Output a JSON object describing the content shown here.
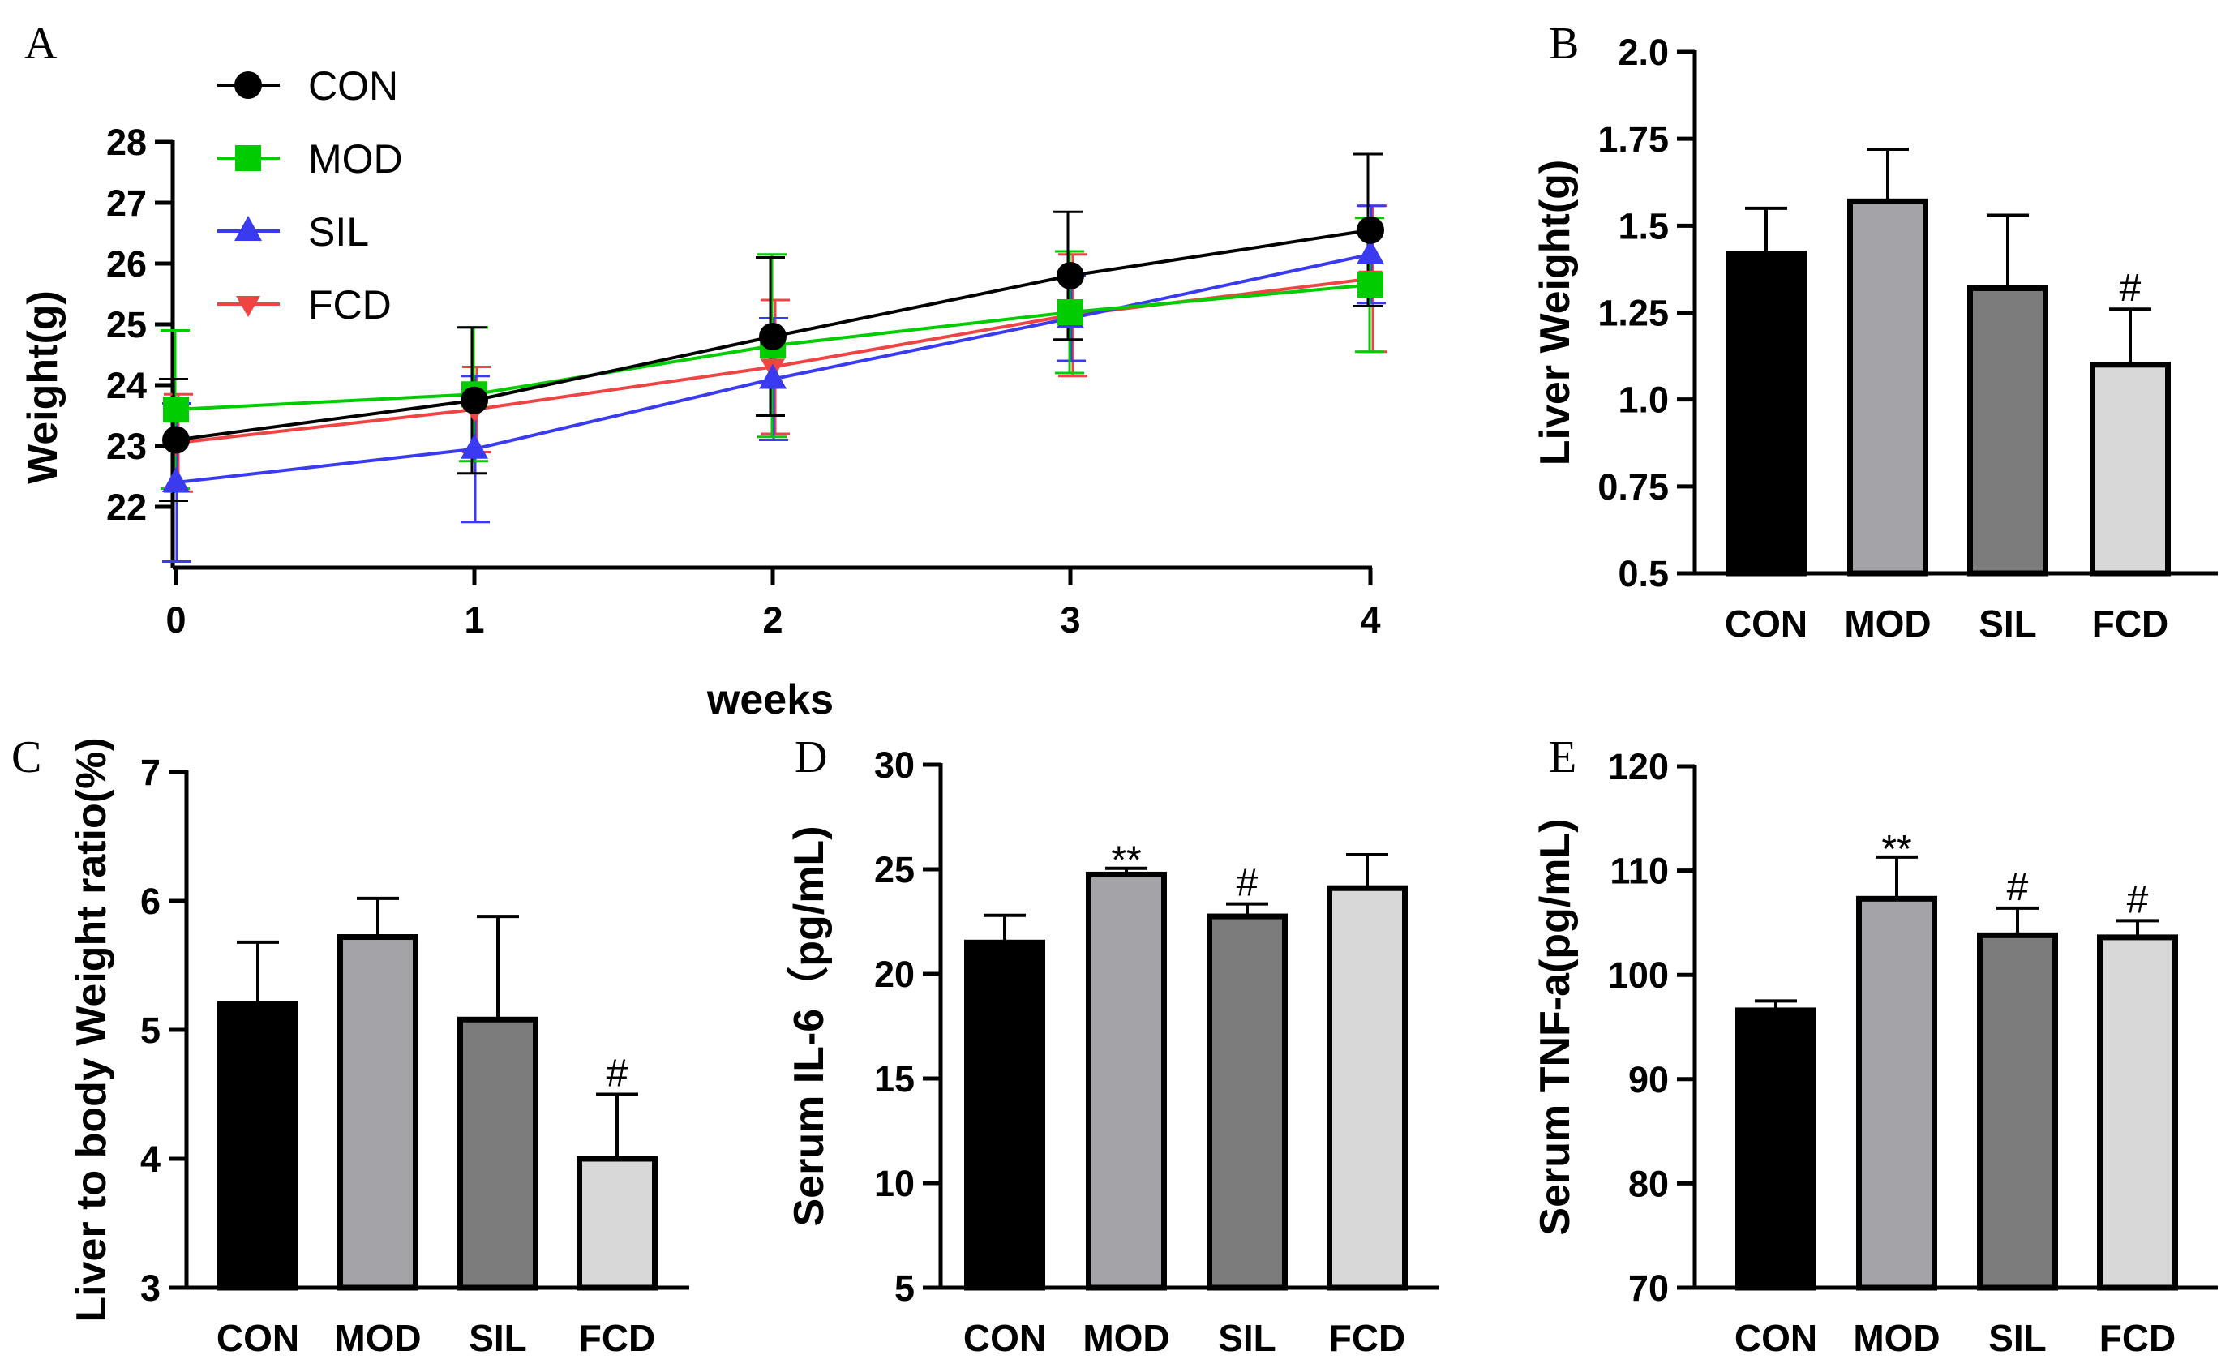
{
  "colors": {
    "CON": "#000000",
    "MOD": "#00cc00",
    "SIL": "#3a3af0",
    "FCD": "#ee4444",
    "bar_CON": "#000000",
    "bar_MOD": "#a4a4a8",
    "bar_SIL": "#7c7c7c",
    "bar_FCD": "#d8d8d8"
  },
  "chart_data": [
    {
      "panel": "A",
      "type": "line",
      "xlabel": "weeks",
      "ylabel": "Weight(g)",
      "x": [
        0,
        1,
        2,
        3,
        4
      ],
      "x_tick_labels": [
        "0",
        "1",
        "2",
        "3",
        "4"
      ],
      "y_ticks": [
        22,
        23,
        24,
        25,
        26,
        27,
        28
      ],
      "ylim": [
        21,
        28
      ],
      "legend_position": "top-left",
      "series": [
        {
          "name": "CON",
          "marker": "circle",
          "values": [
            23.1,
            23.75,
            24.8,
            25.8,
            26.55
          ],
          "errors": [
            1.0,
            1.2,
            1.3,
            1.05,
            1.25
          ]
        },
        {
          "name": "MOD",
          "marker": "square",
          "values": [
            23.6,
            23.85,
            24.65,
            25.2,
            25.65
          ],
          "errors": [
            1.3,
            1.1,
            1.5,
            1.0,
            1.1
          ]
        },
        {
          "name": "SIL",
          "marker": "triangle-up",
          "values": [
            22.4,
            22.95,
            24.1,
            25.1,
            26.15
          ],
          "errors": [
            1.3,
            1.2,
            1.0,
            0.7,
            0.8
          ]
        },
        {
          "name": "FCD",
          "marker": "triangle-down",
          "values": [
            23.05,
            23.6,
            24.3,
            25.15,
            25.75
          ],
          "errors": [
            0.8,
            0.7,
            1.1,
            1.0,
            1.2
          ]
        }
      ]
    },
    {
      "panel": "B",
      "type": "bar",
      "ylabel": "Liver Weight(g)",
      "categories": [
        "CON",
        "MOD",
        "SIL",
        "FCD"
      ],
      "values": [
        1.42,
        1.57,
        1.32,
        1.1
      ],
      "errors": [
        0.13,
        0.15,
        0.21,
        0.16
      ],
      "significance": [
        "",
        "",
        "",
        "#"
      ],
      "ylim": [
        0.5,
        2.0
      ],
      "y_ticks": [
        0.5,
        0.75,
        1.0,
        1.25,
        1.5,
        1.75,
        2.0
      ],
      "y_tick_labels": [
        "0.5",
        "0.75",
        "1.0",
        "1.25",
        "1.5",
        "1.75",
        "2.0"
      ]
    },
    {
      "panel": "C",
      "type": "bar",
      "ylabel": "Liver to body Weight ratio(%)",
      "categories": [
        "CON",
        "MOD",
        "SIL",
        "FCD"
      ],
      "values": [
        5.2,
        5.72,
        5.08,
        4.0
      ],
      "errors": [
        0.48,
        0.3,
        0.8,
        0.5
      ],
      "significance": [
        "",
        "",
        "",
        "#"
      ],
      "ylim": [
        3,
        7
      ],
      "y_ticks": [
        3,
        4,
        5,
        6,
        7
      ],
      "y_tick_labels": [
        "3",
        "4",
        "5",
        "6",
        "7"
      ]
    },
    {
      "panel": "D",
      "type": "bar",
      "ylabel": "Serum IL-6（pg/mL)",
      "categories": [
        "CON",
        "MOD",
        "SIL",
        "FCD"
      ],
      "values": [
        21.5,
        24.75,
        22.75,
        24.1
      ],
      "errors": [
        1.3,
        0.3,
        0.6,
        1.6
      ],
      "significance": [
        "",
        "**",
        "#",
        ""
      ],
      "ylim": [
        5,
        30
      ],
      "y_ticks": [
        5,
        10,
        15,
        20,
        25,
        30
      ],
      "y_tick_labels": [
        "5",
        "10",
        "15",
        "20",
        "25",
        "30"
      ]
    },
    {
      "panel": "E",
      "type": "bar",
      "ylabel": "Serum TNF-a(pg/mL)",
      "categories": [
        "CON",
        "MOD",
        "SIL",
        "FCD"
      ],
      "values": [
        96.6,
        107.3,
        103.8,
        103.6
      ],
      "errors": [
        0.9,
        4.0,
        2.6,
        1.6
      ],
      "significance": [
        "",
        "**",
        "#",
        "#"
      ],
      "ylim": [
        70,
        120
      ],
      "y_ticks": [
        70,
        80,
        90,
        100,
        110,
        120
      ],
      "y_tick_labels": [
        "70",
        "80",
        "90",
        "100",
        "110",
        "120"
      ]
    }
  ]
}
